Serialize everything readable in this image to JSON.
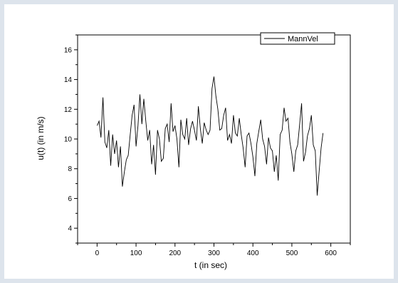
{
  "chart_data": {
    "type": "line",
    "title": "",
    "xlabel": "t (in sec)",
    "ylabel": "u(t) (in m/s)",
    "xlim": [
      -50,
      650
    ],
    "ylim": [
      3,
      17
    ],
    "xticks": [
      0,
      100,
      200,
      300,
      400,
      500,
      600
    ],
    "yticks": [
      4,
      6,
      8,
      10,
      12,
      14,
      16
    ],
    "legend_position": "top-right",
    "grid": false,
    "series": [
      {
        "name": "MannVel",
        "color": "#000000",
        "x": [
          0,
          5,
          10,
          15,
          20,
          25,
          30,
          35,
          40,
          45,
          50,
          55,
          60,
          65,
          70,
          75,
          80,
          85,
          90,
          95,
          100,
          105,
          110,
          115,
          120,
          125,
          130,
          135,
          140,
          145,
          150,
          155,
          160,
          165,
          170,
          175,
          180,
          185,
          190,
          195,
          200,
          205,
          210,
          215,
          220,
          225,
          230,
          235,
          240,
          245,
          250,
          255,
          260,
          265,
          270,
          275,
          280,
          285,
          290,
          295,
          300,
          305,
          310,
          315,
          320,
          325,
          330,
          335,
          340,
          345,
          350,
          355,
          360,
          365,
          370,
          375,
          380,
          385,
          390,
          395,
          400,
          405,
          410,
          415,
          420,
          425,
          430,
          435,
          440,
          445,
          450,
          455,
          460,
          465,
          470,
          475,
          480,
          485,
          490,
          495,
          500,
          505,
          510,
          515,
          520,
          525,
          530,
          535,
          540,
          545,
          550,
          555,
          560,
          565,
          570,
          575,
          580
        ],
        "y": [
          10.9,
          11.2,
          10.1,
          12.8,
          9.8,
          9.4,
          10.6,
          8.2,
          10.3,
          9.0,
          9.9,
          8.1,
          9.5,
          6.8,
          7.8,
          8.6,
          8.9,
          10.3,
          11.6,
          12.3,
          9.5,
          10.9,
          13.0,
          11.0,
          12.7,
          11.2,
          9.9,
          10.6,
          8.3,
          9.6,
          7.6,
          10.6,
          10.0,
          8.5,
          8.7,
          10.7,
          11.0,
          9.8,
          12.4,
          10.5,
          10.9,
          10.0,
          8.1,
          11.3,
          10.3,
          10.0,
          11.4,
          9.6,
          10.7,
          11.2,
          10.6,
          9.9,
          12.2,
          10.7,
          9.7,
          11.1,
          10.6,
          10.3,
          10.6,
          13.4,
          14.2,
          12.9,
          12.0,
          10.6,
          10.7,
          11.6,
          12.1,
          9.9,
          10.3,
          9.7,
          11.6,
          10.4,
          10.2,
          11.4,
          10.3,
          9.4,
          8.1,
          10.2,
          10.4,
          9.7,
          8.8,
          7.5,
          9.7,
          10.5,
          11.3,
          10.0,
          9.5,
          8.3,
          10.1,
          9.4,
          9.2,
          7.8,
          8.9,
          7.2,
          10.3,
          10.6,
          12.1,
          11.2,
          11.4,
          9.8,
          9.0,
          7.8,
          9.2,
          9.6,
          11.0,
          12.4,
          8.5,
          9.1,
          10.2,
          10.7,
          11.6,
          9.6,
          9.2,
          6.2,
          7.8,
          9.4,
          10.4
        ]
      }
    ]
  }
}
